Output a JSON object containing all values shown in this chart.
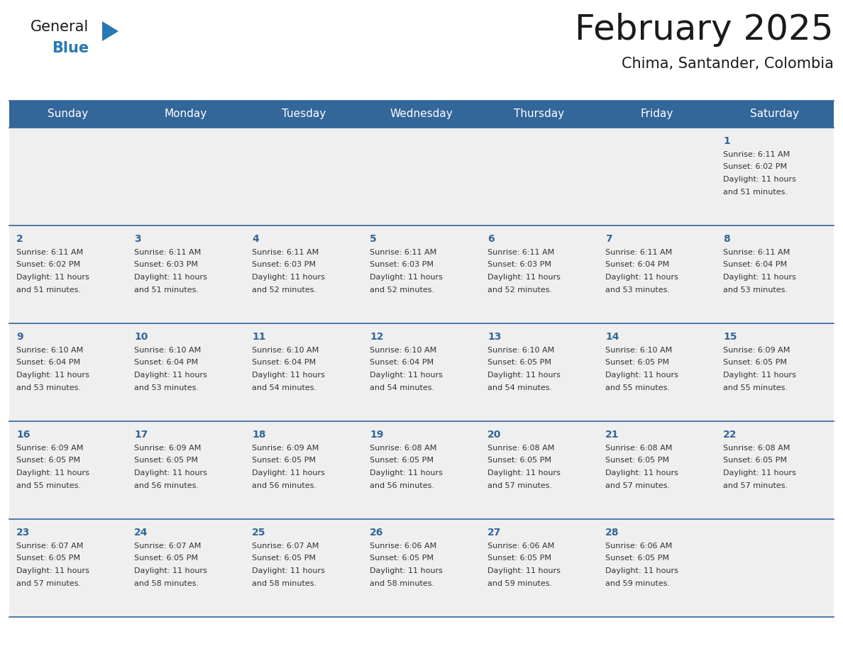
{
  "title": "February 2025",
  "subtitle": "Chima, Santander, Colombia",
  "days_of_week": [
    "Sunday",
    "Monday",
    "Tuesday",
    "Wednesday",
    "Thursday",
    "Friday",
    "Saturday"
  ],
  "header_bg": "#336699",
  "header_text": "#ffffff",
  "row_bg": "#efefef",
  "cell_border_color": "#336699",
  "day_number_color": "#336699",
  "info_text_color": "#333333",
  "calendar_data": [
    [
      null,
      null,
      null,
      null,
      null,
      null,
      {
        "day": "1",
        "sunrise": "6:11 AM",
        "sunset": "6:02 PM",
        "daylight_line1": "Daylight: 11 hours",
        "daylight_line2": "and 51 minutes."
      }
    ],
    [
      {
        "day": "2",
        "sunrise": "6:11 AM",
        "sunset": "6:02 PM",
        "daylight_line1": "Daylight: 11 hours",
        "daylight_line2": "and 51 minutes."
      },
      {
        "day": "3",
        "sunrise": "6:11 AM",
        "sunset": "6:03 PM",
        "daylight_line1": "Daylight: 11 hours",
        "daylight_line2": "and 51 minutes."
      },
      {
        "day": "4",
        "sunrise": "6:11 AM",
        "sunset": "6:03 PM",
        "daylight_line1": "Daylight: 11 hours",
        "daylight_line2": "and 52 minutes."
      },
      {
        "day": "5",
        "sunrise": "6:11 AM",
        "sunset": "6:03 PM",
        "daylight_line1": "Daylight: 11 hours",
        "daylight_line2": "and 52 minutes."
      },
      {
        "day": "6",
        "sunrise": "6:11 AM",
        "sunset": "6:03 PM",
        "daylight_line1": "Daylight: 11 hours",
        "daylight_line2": "and 52 minutes."
      },
      {
        "day": "7",
        "sunrise": "6:11 AM",
        "sunset": "6:04 PM",
        "daylight_line1": "Daylight: 11 hours",
        "daylight_line2": "and 53 minutes."
      },
      {
        "day": "8",
        "sunrise": "6:11 AM",
        "sunset": "6:04 PM",
        "daylight_line1": "Daylight: 11 hours",
        "daylight_line2": "and 53 minutes."
      }
    ],
    [
      {
        "day": "9",
        "sunrise": "6:10 AM",
        "sunset": "6:04 PM",
        "daylight_line1": "Daylight: 11 hours",
        "daylight_line2": "and 53 minutes."
      },
      {
        "day": "10",
        "sunrise": "6:10 AM",
        "sunset": "6:04 PM",
        "daylight_line1": "Daylight: 11 hours",
        "daylight_line2": "and 53 minutes."
      },
      {
        "day": "11",
        "sunrise": "6:10 AM",
        "sunset": "6:04 PM",
        "daylight_line1": "Daylight: 11 hours",
        "daylight_line2": "and 54 minutes."
      },
      {
        "day": "12",
        "sunrise": "6:10 AM",
        "sunset": "6:04 PM",
        "daylight_line1": "Daylight: 11 hours",
        "daylight_line2": "and 54 minutes."
      },
      {
        "day": "13",
        "sunrise": "6:10 AM",
        "sunset": "6:05 PM",
        "daylight_line1": "Daylight: 11 hours",
        "daylight_line2": "and 54 minutes."
      },
      {
        "day": "14",
        "sunrise": "6:10 AM",
        "sunset": "6:05 PM",
        "daylight_line1": "Daylight: 11 hours",
        "daylight_line2": "and 55 minutes."
      },
      {
        "day": "15",
        "sunrise": "6:09 AM",
        "sunset": "6:05 PM",
        "daylight_line1": "Daylight: 11 hours",
        "daylight_line2": "and 55 minutes."
      }
    ],
    [
      {
        "day": "16",
        "sunrise": "6:09 AM",
        "sunset": "6:05 PM",
        "daylight_line1": "Daylight: 11 hours",
        "daylight_line2": "and 55 minutes."
      },
      {
        "day": "17",
        "sunrise": "6:09 AM",
        "sunset": "6:05 PM",
        "daylight_line1": "Daylight: 11 hours",
        "daylight_line2": "and 56 minutes."
      },
      {
        "day": "18",
        "sunrise": "6:09 AM",
        "sunset": "6:05 PM",
        "daylight_line1": "Daylight: 11 hours",
        "daylight_line2": "and 56 minutes."
      },
      {
        "day": "19",
        "sunrise": "6:08 AM",
        "sunset": "6:05 PM",
        "daylight_line1": "Daylight: 11 hours",
        "daylight_line2": "and 56 minutes."
      },
      {
        "day": "20",
        "sunrise": "6:08 AM",
        "sunset": "6:05 PM",
        "daylight_line1": "Daylight: 11 hours",
        "daylight_line2": "and 57 minutes."
      },
      {
        "day": "21",
        "sunrise": "6:08 AM",
        "sunset": "6:05 PM",
        "daylight_line1": "Daylight: 11 hours",
        "daylight_line2": "and 57 minutes."
      },
      {
        "day": "22",
        "sunrise": "6:08 AM",
        "sunset": "6:05 PM",
        "daylight_line1": "Daylight: 11 hours",
        "daylight_line2": "and 57 minutes."
      }
    ],
    [
      {
        "day": "23",
        "sunrise": "6:07 AM",
        "sunset": "6:05 PM",
        "daylight_line1": "Daylight: 11 hours",
        "daylight_line2": "and 57 minutes."
      },
      {
        "day": "24",
        "sunrise": "6:07 AM",
        "sunset": "6:05 PM",
        "daylight_line1": "Daylight: 11 hours",
        "daylight_line2": "and 58 minutes."
      },
      {
        "day": "25",
        "sunrise": "6:07 AM",
        "sunset": "6:05 PM",
        "daylight_line1": "Daylight: 11 hours",
        "daylight_line2": "and 58 minutes."
      },
      {
        "day": "26",
        "sunrise": "6:06 AM",
        "sunset": "6:05 PM",
        "daylight_line1": "Daylight: 11 hours",
        "daylight_line2": "and 58 minutes."
      },
      {
        "day": "27",
        "sunrise": "6:06 AM",
        "sunset": "6:05 PM",
        "daylight_line1": "Daylight: 11 hours",
        "daylight_line2": "and 59 minutes."
      },
      {
        "day": "28",
        "sunrise": "6:06 AM",
        "sunset": "6:05 PM",
        "daylight_line1": "Daylight: 11 hours",
        "daylight_line2": "and 59 minutes."
      },
      null
    ]
  ],
  "logo_text_general": "General",
  "logo_text_blue": "Blue",
  "logo_triangle_color": "#2878b4",
  "logo_general_color": "#1a1a1a"
}
